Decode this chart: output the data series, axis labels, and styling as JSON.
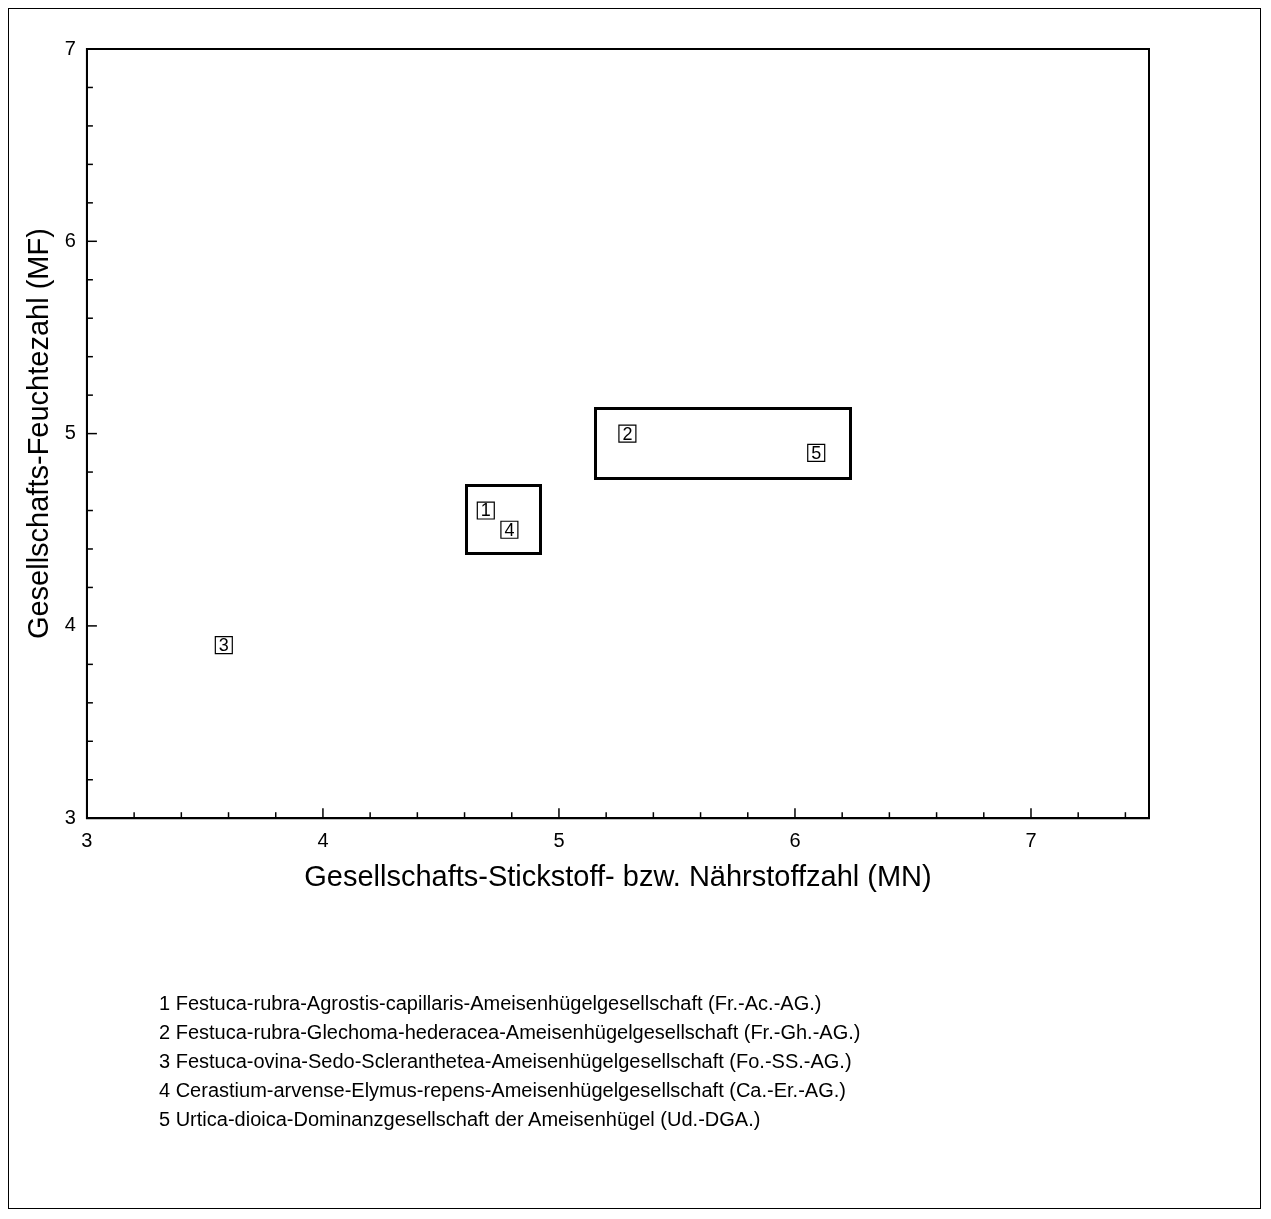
{
  "chart_data": {
    "type": "scatter",
    "xlabel": "Gesellschafts-Stickstoff- bzw. Nährstoffzahl (MN)",
    "ylabel": "Gesellschafts-Feuchtezahl (MF)",
    "x": [
      4.69,
      5.29,
      3.58,
      4.79,
      6.09
    ],
    "values": [
      4.6,
      5.0,
      3.9,
      4.5,
      4.9
    ],
    "color": "#000000",
    "marker": "square",
    "grid": false,
    "legend": false,
    "xlim": [
      3,
      7.5
    ],
    "xticks": [
      3,
      {
        "value": 3.2,
        "label": null
      },
      {
        "value": 3.4,
        "label": null
      },
      {
        "value": 3.6,
        "label": null
      },
      {
        "value": 3.8,
        "label": null
      },
      4,
      {
        "value": 4.2,
        "label": null
      },
      {
        "value": 4.4,
        "label": null
      },
      {
        "value": 4.6,
        "label": null
      },
      {
        "value": 4.8,
        "label": null
      },
      5,
      {
        "value": 5.2,
        "label": null
      },
      {
        "value": 5.4,
        "label": null
      },
      {
        "value": 5.6,
        "label": null
      },
      {
        "value": 5.8,
        "label": null
      },
      6,
      {
        "value": 6.2,
        "label": null
      },
      {
        "value": 6.4,
        "label": null
      },
      {
        "value": 6.6,
        "label": null
      },
      {
        "value": 6.8,
        "label": null
      },
      7,
      {
        "value": 7.2,
        "label": null
      },
      {
        "value": 7.4,
        "label": null
      }
    ],
    "ylim": [
      3,
      7
    ],
    "yticks": [
      3,
      {
        "value": 3.2,
        "label": null
      },
      {
        "value": 3.4,
        "label": null
      },
      {
        "value": 3.6,
        "label": null
      },
      {
        "value": 3.8,
        "label": null
      },
      4,
      {
        "value": 4.2,
        "label": null
      },
      {
        "value": 4.4,
        "label": null
      },
      {
        "value": 4.6,
        "label": null
      },
      {
        "value": 4.8,
        "label": null
      },
      5,
      {
        "value": 5.2,
        "label": null
      },
      {
        "value": 5.4,
        "label": null
      },
      {
        "value": 5.6,
        "label": null
      },
      {
        "value": 5.8,
        "label": null
      },
      6,
      {
        "value": 6.2,
        "label": null
      },
      {
        "value": 6.4,
        "label": null
      },
      {
        "value": 6.6,
        "label": null
      },
      {
        "value": 6.8,
        "label": null
      },
      7
    ],
    "annotations": [
      {
        "text": "1",
        "x": 4.69,
        "y": 4.6
      },
      {
        "text": "2",
        "x": 5.29,
        "y": 5.0
      },
      {
        "text": "3",
        "x": 3.58,
        "y": 3.9
      },
      {
        "text": "4",
        "x": 4.79,
        "y": 4.5
      },
      {
        "text": "5",
        "x": 6.09,
        "y": 4.9
      },
      "1 Festuca-rubra-Agrostis-capillaris-Ameisenhügelgesellschaft (Fr.-Ac.-AG.)",
      "2 Festuca-rubra-Glechoma-hederacea-Ameisenhügelgesellschaft (Fr.-Gh.-AG.)",
      "3 Festuca-ovina-Sedo-Scleranthetea-Ameisenhügelgesellschaft (Fo.-SS.-AG.)",
      "4 Cerastium-arvense-Elymus-repens-Ameisenhügelgesellschaft (Ca.-Er.-AG.)",
      "5 Urtica-dioica-Dominanzgesellschaft der Ameisenhügel (Ud.-DGA.)"
    ]
  }
}
